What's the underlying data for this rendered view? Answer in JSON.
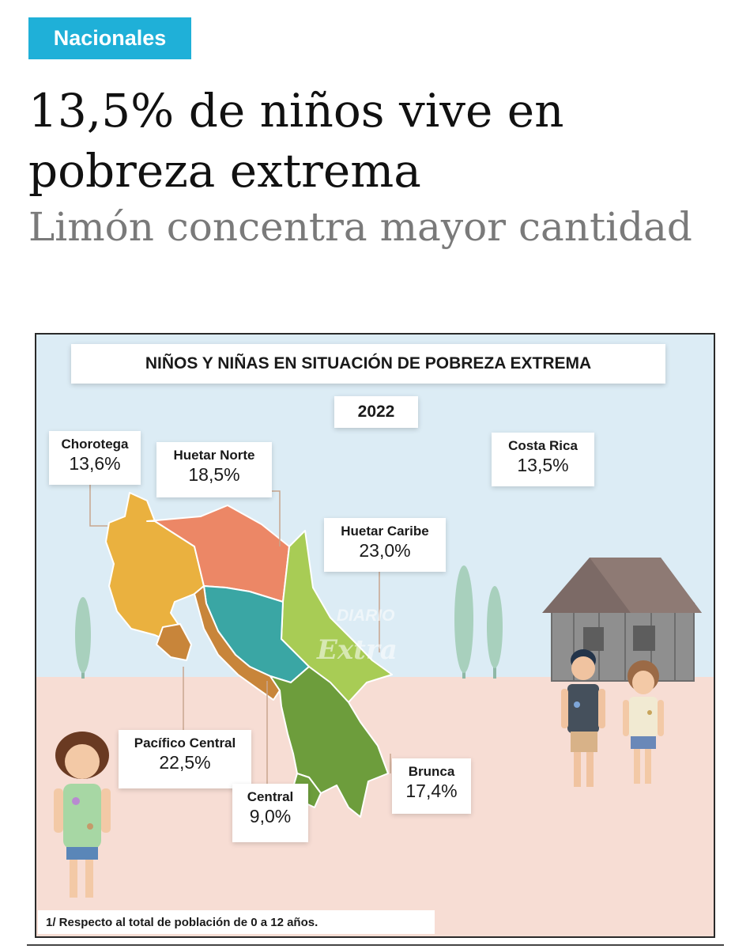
{
  "section": {
    "label": "Nacionales",
    "color": "#1fb0d8"
  },
  "article": {
    "headline": "13,5% de niños vive en pobreza extrema",
    "subheadline": "Limón concentra mayor cantidad"
  },
  "infographic": {
    "title": "NIÑOS Y NIÑAS EN SITUACIÓN DE POBREZA EXTREMA",
    "year": "2022",
    "watermark": {
      "line1": "DIARIO",
      "line2": "Extra"
    },
    "regions": [
      {
        "name": "Chorotega",
        "value": "13,6%",
        "color": "#eab13f"
      },
      {
        "name": "Huetar Norte",
        "value": "18,5%",
        "color": "#ec8766"
      },
      {
        "name": "Costa Rica",
        "value": "13,5%"
      },
      {
        "name": "Huetar Caribe",
        "value": "23,0%",
        "color": "#a8cc55"
      },
      {
        "name": "Pacífico Central",
        "value": "22,5%",
        "color": "#c8853a"
      },
      {
        "name": "Central",
        "value": "9,0%",
        "color": "#3aa6a4"
      },
      {
        "name": "Brunca",
        "value": "17,4%",
        "color": "#6d9d3c"
      }
    ],
    "footnote": "1/ Respecto al total de población de 0 a 12 años."
  }
}
